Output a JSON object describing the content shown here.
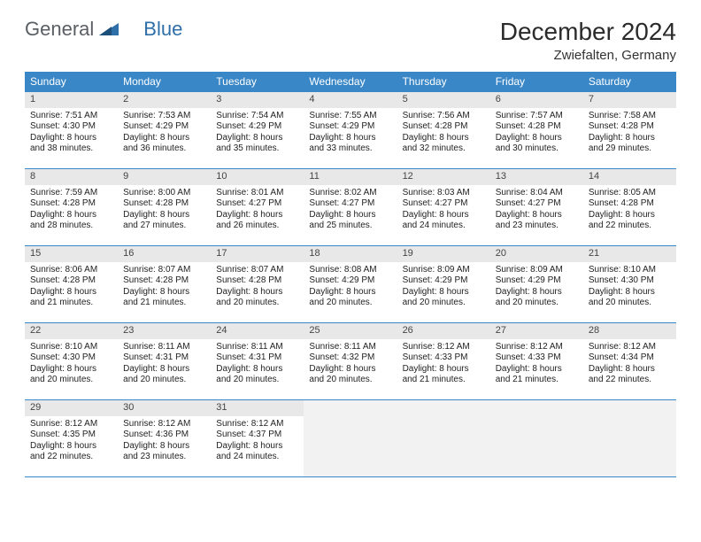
{
  "logo": {
    "text1": "General",
    "text2": "Blue"
  },
  "title": "December 2024",
  "location": "Zwiefalten, Germany",
  "weekdays": [
    "Sunday",
    "Monday",
    "Tuesday",
    "Wednesday",
    "Thursday",
    "Friday",
    "Saturday"
  ],
  "colors": {
    "header_bg": "#3a87c7",
    "header_text": "#ffffff",
    "daynum_bg": "#e8e8e8",
    "row_border": "#3a87c7",
    "empty_bg": "#f2f2f2",
    "logo_gray": "#5a5f64",
    "logo_blue": "#2f6fa8"
  },
  "days": [
    {
      "n": "1",
      "sunrise": "Sunrise: 7:51 AM",
      "sunset": "Sunset: 4:30 PM",
      "dl1": "Daylight: 8 hours",
      "dl2": "and 38 minutes."
    },
    {
      "n": "2",
      "sunrise": "Sunrise: 7:53 AM",
      "sunset": "Sunset: 4:29 PM",
      "dl1": "Daylight: 8 hours",
      "dl2": "and 36 minutes."
    },
    {
      "n": "3",
      "sunrise": "Sunrise: 7:54 AM",
      "sunset": "Sunset: 4:29 PM",
      "dl1": "Daylight: 8 hours",
      "dl2": "and 35 minutes."
    },
    {
      "n": "4",
      "sunrise": "Sunrise: 7:55 AM",
      "sunset": "Sunset: 4:29 PM",
      "dl1": "Daylight: 8 hours",
      "dl2": "and 33 minutes."
    },
    {
      "n": "5",
      "sunrise": "Sunrise: 7:56 AM",
      "sunset": "Sunset: 4:28 PM",
      "dl1": "Daylight: 8 hours",
      "dl2": "and 32 minutes."
    },
    {
      "n": "6",
      "sunrise": "Sunrise: 7:57 AM",
      "sunset": "Sunset: 4:28 PM",
      "dl1": "Daylight: 8 hours",
      "dl2": "and 30 minutes."
    },
    {
      "n": "7",
      "sunrise": "Sunrise: 7:58 AM",
      "sunset": "Sunset: 4:28 PM",
      "dl1": "Daylight: 8 hours",
      "dl2": "and 29 minutes."
    },
    {
      "n": "8",
      "sunrise": "Sunrise: 7:59 AM",
      "sunset": "Sunset: 4:28 PM",
      "dl1": "Daylight: 8 hours",
      "dl2": "and 28 minutes."
    },
    {
      "n": "9",
      "sunrise": "Sunrise: 8:00 AM",
      "sunset": "Sunset: 4:28 PM",
      "dl1": "Daylight: 8 hours",
      "dl2": "and 27 minutes."
    },
    {
      "n": "10",
      "sunrise": "Sunrise: 8:01 AM",
      "sunset": "Sunset: 4:27 PM",
      "dl1": "Daylight: 8 hours",
      "dl2": "and 26 minutes."
    },
    {
      "n": "11",
      "sunrise": "Sunrise: 8:02 AM",
      "sunset": "Sunset: 4:27 PM",
      "dl1": "Daylight: 8 hours",
      "dl2": "and 25 minutes."
    },
    {
      "n": "12",
      "sunrise": "Sunrise: 8:03 AM",
      "sunset": "Sunset: 4:27 PM",
      "dl1": "Daylight: 8 hours",
      "dl2": "and 24 minutes."
    },
    {
      "n": "13",
      "sunrise": "Sunrise: 8:04 AM",
      "sunset": "Sunset: 4:27 PM",
      "dl1": "Daylight: 8 hours",
      "dl2": "and 23 minutes."
    },
    {
      "n": "14",
      "sunrise": "Sunrise: 8:05 AM",
      "sunset": "Sunset: 4:28 PM",
      "dl1": "Daylight: 8 hours",
      "dl2": "and 22 minutes."
    },
    {
      "n": "15",
      "sunrise": "Sunrise: 8:06 AM",
      "sunset": "Sunset: 4:28 PM",
      "dl1": "Daylight: 8 hours",
      "dl2": "and 21 minutes."
    },
    {
      "n": "16",
      "sunrise": "Sunrise: 8:07 AM",
      "sunset": "Sunset: 4:28 PM",
      "dl1": "Daylight: 8 hours",
      "dl2": "and 21 minutes."
    },
    {
      "n": "17",
      "sunrise": "Sunrise: 8:07 AM",
      "sunset": "Sunset: 4:28 PM",
      "dl1": "Daylight: 8 hours",
      "dl2": "and 20 minutes."
    },
    {
      "n": "18",
      "sunrise": "Sunrise: 8:08 AM",
      "sunset": "Sunset: 4:29 PM",
      "dl1": "Daylight: 8 hours",
      "dl2": "and 20 minutes."
    },
    {
      "n": "19",
      "sunrise": "Sunrise: 8:09 AM",
      "sunset": "Sunset: 4:29 PM",
      "dl1": "Daylight: 8 hours",
      "dl2": "and 20 minutes."
    },
    {
      "n": "20",
      "sunrise": "Sunrise: 8:09 AM",
      "sunset": "Sunset: 4:29 PM",
      "dl1": "Daylight: 8 hours",
      "dl2": "and 20 minutes."
    },
    {
      "n": "21",
      "sunrise": "Sunrise: 8:10 AM",
      "sunset": "Sunset: 4:30 PM",
      "dl1": "Daylight: 8 hours",
      "dl2": "and 20 minutes."
    },
    {
      "n": "22",
      "sunrise": "Sunrise: 8:10 AM",
      "sunset": "Sunset: 4:30 PM",
      "dl1": "Daylight: 8 hours",
      "dl2": "and 20 minutes."
    },
    {
      "n": "23",
      "sunrise": "Sunrise: 8:11 AM",
      "sunset": "Sunset: 4:31 PM",
      "dl1": "Daylight: 8 hours",
      "dl2": "and 20 minutes."
    },
    {
      "n": "24",
      "sunrise": "Sunrise: 8:11 AM",
      "sunset": "Sunset: 4:31 PM",
      "dl1": "Daylight: 8 hours",
      "dl2": "and 20 minutes."
    },
    {
      "n": "25",
      "sunrise": "Sunrise: 8:11 AM",
      "sunset": "Sunset: 4:32 PM",
      "dl1": "Daylight: 8 hours",
      "dl2": "and 20 minutes."
    },
    {
      "n": "26",
      "sunrise": "Sunrise: 8:12 AM",
      "sunset": "Sunset: 4:33 PM",
      "dl1": "Daylight: 8 hours",
      "dl2": "and 21 minutes."
    },
    {
      "n": "27",
      "sunrise": "Sunrise: 8:12 AM",
      "sunset": "Sunset: 4:33 PM",
      "dl1": "Daylight: 8 hours",
      "dl2": "and 21 minutes."
    },
    {
      "n": "28",
      "sunrise": "Sunrise: 8:12 AM",
      "sunset": "Sunset: 4:34 PM",
      "dl1": "Daylight: 8 hours",
      "dl2": "and 22 minutes."
    },
    {
      "n": "29",
      "sunrise": "Sunrise: 8:12 AM",
      "sunset": "Sunset: 4:35 PM",
      "dl1": "Daylight: 8 hours",
      "dl2": "and 22 minutes."
    },
    {
      "n": "30",
      "sunrise": "Sunrise: 8:12 AM",
      "sunset": "Sunset: 4:36 PM",
      "dl1": "Daylight: 8 hours",
      "dl2": "and 23 minutes."
    },
    {
      "n": "31",
      "sunrise": "Sunrise: 8:12 AM",
      "sunset": "Sunset: 4:37 PM",
      "dl1": "Daylight: 8 hours",
      "dl2": "and 24 minutes."
    }
  ]
}
